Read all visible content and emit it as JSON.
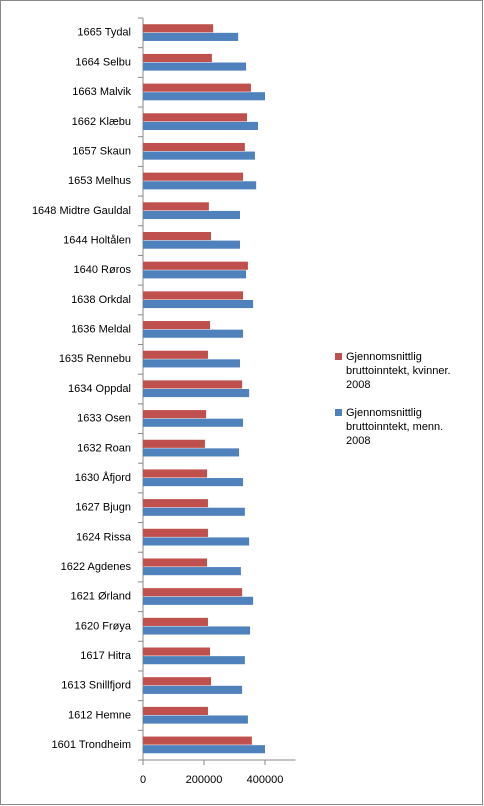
{
  "chart_data": {
    "type": "hbar",
    "categories": [
      "1665 Tydal",
      "1664 Selbu",
      "1663 Malvik",
      "1662 Klæbu",
      "1657 Skaun",
      "1653 Melhus",
      "1648 Midtre Gauldal",
      "1644 Holtålen",
      "1640 Røros",
      "1638 Orkdal",
      "1636 Meldal",
      "1635 Rennebu",
      "1634 Oppdal",
      "1633 Osen",
      "1632 Roan",
      "1630 Åfjord",
      "1627 Bjugn",
      "1624 Rissa",
      "1622 Agdenes",
      "1621 Ørland",
      "1620 Frøya",
      "1617 Hitra",
      "1613 Snillfjord",
      "1612 Hemne",
      "1601 Trondheim"
    ],
    "series": [
      {
        "name": "Gjennomsnittlig bruttoinntekt, kvinner. 2008",
        "color": "#c0504d",
        "values": [
          230000,
          226000,
          354000,
          341000,
          334000,
          328000,
          216000,
          223000,
          344000,
          328000,
          220000,
          213000,
          325000,
          207000,
          203000,
          210000,
          213000,
          213000,
          210000,
          325000,
          213000,
          220000,
          223000,
          213000,
          357000
        ]
      },
      {
        "name": "Gjennomsnittlig bruttoinntekt, menn. 2008",
        "color": "#4f81bd",
        "values": [
          312000,
          338000,
          400000,
          377000,
          367000,
          371000,
          318000,
          318000,
          338000,
          361000,
          328000,
          318000,
          348000,
          328000,
          315000,
          328000,
          334000,
          348000,
          321000,
          361000,
          351000,
          334000,
          325000,
          344000,
          400000
        ]
      }
    ],
    "xlim": [
      0,
      500000
    ],
    "xticks": [
      0,
      200000,
      400000
    ],
    "grid": false,
    "legend": "right"
  }
}
